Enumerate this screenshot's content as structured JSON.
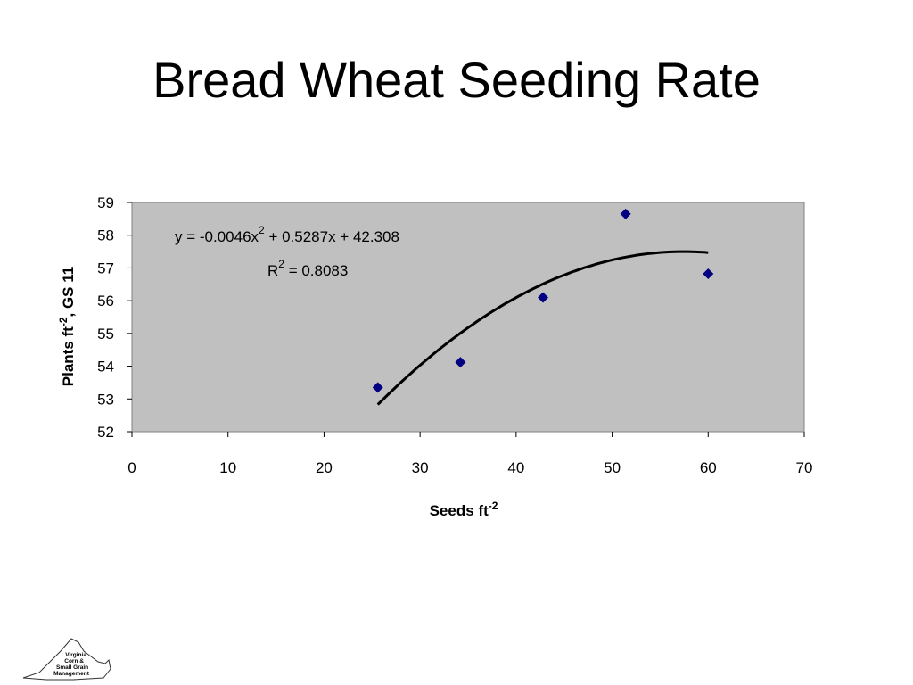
{
  "slide": {
    "title": "Bread Wheat Seeding Rate"
  },
  "colors": {
    "plot_background": "#c0c0c0",
    "marker": "#000080",
    "trendline": "#000000"
  },
  "chart_data": {
    "type": "scatter",
    "xlabel_base": "Seeds ft",
    "xlabel_sup": "-2",
    "ylabel_base": "Plants ft",
    "ylabel_sup": "-2",
    "ylabel_tail": ", GS 11",
    "xlim": [
      0,
      70
    ],
    "ylim": [
      52,
      59
    ],
    "xticks": [
      0,
      10,
      20,
      30,
      40,
      50,
      60,
      70
    ],
    "yticks": [
      52,
      53,
      54,
      55,
      56,
      57,
      58,
      59
    ],
    "grid": false,
    "series": [
      {
        "x": [
          25.6,
          34.2,
          42.8,
          51.4,
          60.0
        ],
        "y": [
          53.35,
          54.12,
          56.1,
          58.65,
          56.82
        ]
      }
    ],
    "trendline": {
      "type": "polynomial",
      "coefficients": [
        -0.0046,
        0.5287,
        42.308
      ],
      "x_range": [
        25.6,
        60.0
      ],
      "equation_parts": [
        "y = -0.0046x",
        "2",
        " + 0.5287x + 42.308"
      ],
      "r2_parts": [
        "R",
        "2",
        " = 0.8083"
      ]
    }
  },
  "logo": {
    "text_lines": [
      "Virginia",
      "Corn &",
      "Small Grain",
      "Management"
    ]
  }
}
